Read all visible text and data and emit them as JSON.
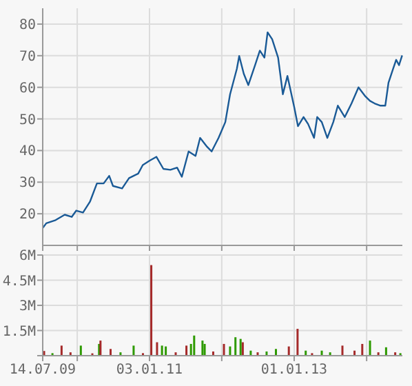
{
  "chart_data": [
    {
      "type": "line",
      "xlim": [
        "2009-07-14",
        "2014-06-30"
      ],
      "xticks": [
        {
          "value": "2009-07-14",
          "label": null
        },
        {
          "value": "2010-01-04",
          "label": null
        },
        {
          "value": "2011-01-03",
          "label": null
        },
        {
          "value": "2012-01-02",
          "label": null
        },
        {
          "value": "2013-01-01",
          "label": null
        },
        {
          "value": "2014-01-01",
          "label": null
        }
      ],
      "ylim": [
        10,
        85
      ],
      "yticks": [
        20,
        30,
        40,
        50,
        60,
        70,
        80
      ],
      "grid": true,
      "tick_labels": "y",
      "marker": "none",
      "line_style": "solid",
      "series": [
        {
          "color": "#1a5a96",
          "x": [
            "2009-07-14",
            "2009-08-01",
            "2009-09-17",
            "2009-11-02",
            "2009-12-07",
            "2009-12-30",
            "2010-02-02",
            "2010-03-09",
            "2010-04-13",
            "2010-05-17",
            "2010-06-14",
            "2010-07-03",
            "2010-08-18",
            "2010-09-22",
            "2010-11-07",
            "2010-11-30",
            "2011-01-04",
            "2011-02-07",
            "2011-03-14",
            "2011-04-18",
            "2011-05-22",
            "2011-06-15",
            "2011-07-19",
            "2011-08-23",
            "2011-09-15",
            "2011-10-20",
            "2011-11-12",
            "2011-12-17",
            "2012-01-20",
            "2012-02-13",
            "2012-03-18",
            "2012-03-30",
            "2012-04-22",
            "2012-05-15",
            "2012-06-19",
            "2012-07-12",
            "2012-08-04",
            "2012-08-20",
            "2012-09-12",
            "2012-10-12",
            "2012-11-05",
            "2012-11-28",
            "2013-01-02",
            "2013-01-20",
            "2013-02-17",
            "2013-03-12",
            "2013-04-11",
            "2013-04-27",
            "2013-05-20",
            "2013-06-17",
            "2013-07-17",
            "2013-08-09",
            "2013-09-13",
            "2013-10-17",
            "2013-11-21",
            "2013-12-26",
            "2014-01-18",
            "2014-02-10",
            "2014-03-12",
            "2014-04-05",
            "2014-04-21",
            "2014-05-14",
            "2014-05-30",
            "2014-06-13",
            "2014-06-29"
          ],
          "values": [
            15.5,
            17,
            18,
            19.7,
            19,
            21,
            20.4,
            23.8,
            29.6,
            29.6,
            32,
            28.8,
            28,
            31.3,
            32.7,
            35.4,
            36.8,
            38,
            34.2,
            33.9,
            34.6,
            31.7,
            39.7,
            38.3,
            44,
            41.2,
            39.7,
            44,
            49,
            57.8,
            65.8,
            69.9,
            64.3,
            60.7,
            67.2,
            71.6,
            69.4,
            77.4,
            75.2,
            69.4,
            57.8,
            63.6,
            53.5,
            47.7,
            50.6,
            48.4,
            44,
            50.6,
            49,
            44,
            49,
            54.2,
            50.6,
            54.9,
            60,
            57.1,
            55.7,
            54.9,
            54.2,
            54.2,
            61.4,
            65.8,
            68.7,
            67,
            70.1
          ]
        }
      ]
    },
    {
      "type": "bar",
      "xlim": [
        "2009-07-14",
        "2014-06-30"
      ],
      "xticks": [
        {
          "value": "2009-07-14",
          "label": "14.07.09"
        },
        {
          "value": "2010-01-04",
          "label": null
        },
        {
          "value": "2011-01-03",
          "label": "03.01.11"
        },
        {
          "value": "2012-01-02",
          "label": null
        },
        {
          "value": "2013-01-01",
          "label": "01.01.13"
        },
        {
          "value": "2014-01-01",
          "label": null
        }
      ],
      "ylim": [
        0,
        6000000
      ],
      "yticks": [
        {
          "value": 0,
          "label": null
        },
        {
          "value": 1500000,
          "label": "1.5M"
        },
        {
          "value": 3000000,
          "label": "3M"
        },
        {
          "value": 4500000,
          "label": "4.5M"
        },
        {
          "value": 6000000,
          "label": "6M"
        }
      ],
      "grid": true,
      "x": [
        "2009-07-21",
        "2009-09-01",
        "2009-10-17",
        "2009-12-01",
        "2010-01-22",
        "2010-03-21",
        "2010-04-24",
        "2010-05-01",
        "2010-06-21",
        "2010-08-10",
        "2010-10-15",
        "2010-12-01",
        "2011-01-12",
        "2011-02-10",
        "2011-03-07",
        "2011-03-26",
        "2011-05-15",
        "2011-07-08",
        "2011-07-31",
        "2011-08-16",
        "2011-09-27",
        "2011-10-08",
        "2011-11-20",
        "2012-01-13",
        "2012-02-13",
        "2012-03-11",
        "2012-04-06",
        "2012-04-17",
        "2012-05-27",
        "2012-07-01",
        "2012-08-15",
        "2012-10-01",
        "2012-12-05",
        "2013-01-18",
        "2013-02-28",
        "2013-04-01",
        "2013-05-20",
        "2013-07-01",
        "2013-09-01",
        "2013-11-01",
        "2013-12-10",
        "2014-01-18",
        "2014-03-01",
        "2014-04-09",
        "2014-05-25",
        "2014-06-20"
      ],
      "values": [
        280000,
        150000,
        600000,
        200000,
        600000,
        140000,
        700000,
        900000,
        400000,
        200000,
        600000,
        150000,
        5400000,
        800000,
        600000,
        550000,
        200000,
        600000,
        700000,
        1200000,
        900000,
        700000,
        250000,
        700000,
        550000,
        1100000,
        1000000,
        800000,
        300000,
        200000,
        250000,
        400000,
        550000,
        1600000,
        300000,
        150000,
        300000,
        200000,
        600000,
        300000,
        700000,
        900000,
        200000,
        500000,
        200000,
        150000
      ],
      "colors": [
        "#a52a2a",
        "#2e9a00",
        "#a52a2a",
        "#a52a2a",
        "#2e9a00",
        "#a52a2a",
        "#2e9a00",
        "#a52a2a",
        "#a52a2a",
        "#2e9a00",
        "#2e9a00",
        "#a52a2a",
        "#a52a2a",
        "#a52a2a",
        "#2e9a00",
        "#2e9a00",
        "#a52a2a",
        "#a52a2a",
        "#2e9a00",
        "#2e9a00",
        "#2e9a00",
        "#2e9a00",
        "#a52a2a",
        "#a52a2a",
        "#2e9a00",
        "#2e9a00",
        "#2e9a00",
        "#a52a2a",
        "#2e9a00",
        "#a52a2a",
        "#2e9a00",
        "#2e9a00",
        "#a52a2a",
        "#a52a2a",
        "#2e9a00",
        "#a52a2a",
        "#2e9a00",
        "#2e9a00",
        "#a52a2a",
        "#a52a2a",
        "#a52a2a",
        "#2e9a00",
        "#a52a2a",
        "#2e9a00",
        "#a52a2a",
        "#2e9a00"
      ]
    }
  ]
}
